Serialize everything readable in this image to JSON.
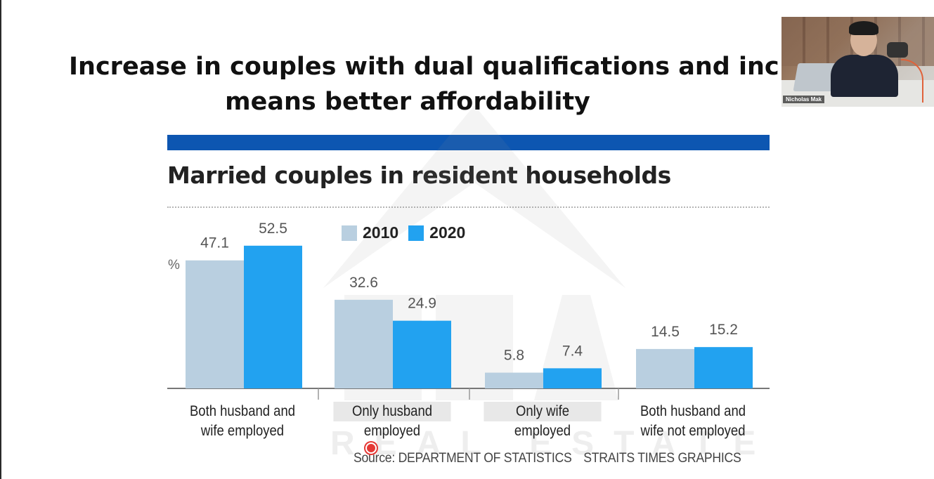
{
  "slide": {
    "title_line1": "Increase in couples with dual qualifications and inc",
    "title_line2": "means better affordability"
  },
  "webcam": {
    "participant_name": "Nicholas Mak"
  },
  "colors": {
    "banner": "#0d56b1",
    "series_2010": "#b9cfe0",
    "series_2020": "#22a2f0"
  },
  "chart_data": {
    "type": "bar",
    "title": "Married couples in resident households",
    "ylabel": "%",
    "categories": [
      [
        "Both husband and",
        "wife employed"
      ],
      [
        "Only husband",
        "employed"
      ],
      [
        "Only wife",
        "employed"
      ],
      [
        "Both husband and",
        "wife not employed"
      ]
    ],
    "series": [
      {
        "name": "2010",
        "values": [
          47.1,
          32.6,
          5.8,
          14.5
        ],
        "labels": [
          "47.1",
          "32.6",
          "5.8",
          "14.5"
        ]
      },
      {
        "name": "2020",
        "values": [
          52.5,
          24.9,
          7.4,
          15.2
        ],
        "labels": [
          "52.5",
          "24.9",
          "7.4",
          "15.2"
        ]
      }
    ],
    "ylim": [
      0,
      60
    ],
    "legend": "top",
    "grid": false,
    "source": "Source: DEPARTMENT OF STATISTICS",
    "credit": "STRAITS TIMES GRAPHICS"
  },
  "watermark": {
    "text": "REAL ESTATE"
  }
}
